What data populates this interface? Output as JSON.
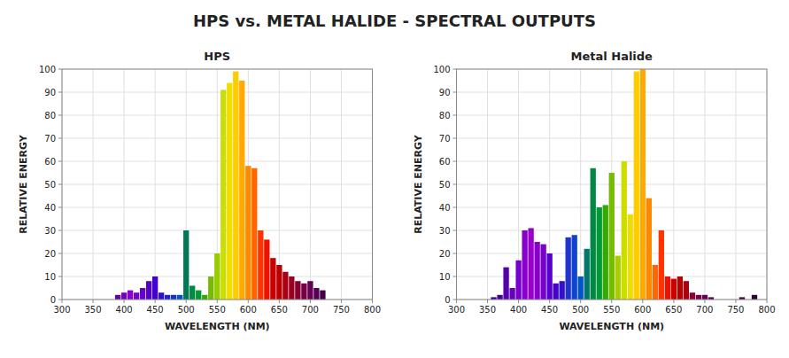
{
  "title": "HPS vs. METAL HALIDE - SPECTRAL OUTPUTS",
  "chart_data": [
    {
      "type": "bar",
      "title": "HPS",
      "xlabel": "WAVELENGTH (NM)",
      "ylabel": "RELATIVE ENERGY",
      "xlim": [
        300,
        800
      ],
      "ylim": [
        0,
        100
      ],
      "xticks": [
        300,
        350,
        400,
        450,
        500,
        550,
        600,
        650,
        700,
        750,
        800
      ],
      "yticks": [
        0,
        10,
        20,
        30,
        40,
        50,
        60,
        70,
        80,
        90,
        100
      ],
      "grid": true,
      "x": [
        390,
        400,
        410,
        420,
        430,
        440,
        450,
        460,
        470,
        480,
        490,
        500,
        510,
        520,
        530,
        540,
        550,
        560,
        570,
        580,
        590,
        600,
        610,
        620,
        630,
        640,
        650,
        660,
        670,
        680,
        690,
        700,
        710,
        720
      ],
      "values": [
        2,
        3,
        4,
        3,
        5,
        8,
        10,
        3,
        2,
        2,
        2,
        30,
        6,
        4,
        2,
        10,
        20,
        91,
        94,
        99,
        95,
        58,
        57,
        30,
        26,
        18,
        15,
        12,
        10,
        8,
        7,
        8,
        5,
        4
      ],
      "colors": [
        "#6600aa",
        "#7700bb",
        "#8800cc",
        "#7700cc",
        "#6600cc",
        "#5500cc",
        "#4400cc",
        "#3311cc",
        "#2222cc",
        "#1133cc",
        "#0055bb",
        "#007755",
        "#008844",
        "#009933",
        "#33aa00",
        "#77bb00",
        "#99cc00",
        "#ccdd00",
        "#eedd00",
        "#ffcc00",
        "#ffaa00",
        "#ff8800",
        "#ff6600",
        "#ff3300",
        "#ee1100",
        "#cc0000",
        "#bb0000",
        "#aa0011",
        "#990022",
        "#880033",
        "#770044",
        "#660055",
        "#550055",
        "#440044"
      ]
    },
    {
      "type": "bar",
      "title": "Metal Halide",
      "xlabel": "WAVELENGTH (NM)",
      "ylabel": "RELATIVE ENERGY",
      "xlim": [
        300,
        800
      ],
      "ylim": [
        0,
        100
      ],
      "xticks": [
        300,
        350,
        400,
        450,
        500,
        550,
        600,
        650,
        700,
        750,
        800
      ],
      "yticks": [
        0,
        10,
        20,
        30,
        40,
        50,
        60,
        70,
        80,
        90,
        100
      ],
      "grid": true,
      "x": [
        360,
        370,
        380,
        390,
        400,
        410,
        420,
        430,
        440,
        450,
        460,
        470,
        480,
        490,
        500,
        510,
        520,
        530,
        540,
        550,
        560,
        570,
        580,
        590,
        600,
        610,
        620,
        630,
        640,
        650,
        660,
        670,
        680,
        690,
        700,
        710,
        760,
        780
      ],
      "values": [
        1,
        2,
        14,
        5,
        17,
        30,
        31,
        25,
        24,
        20,
        7,
        8,
        27,
        28,
        10,
        22,
        57,
        40,
        41,
        55,
        19,
        60,
        37,
        99,
        100,
        44,
        15,
        30,
        10,
        9,
        10,
        8,
        3,
        2,
        2,
        1,
        1,
        2
      ],
      "colors": [
        "#330088",
        "#440099",
        "#5500aa",
        "#6600bb",
        "#7700cc",
        "#8800cc",
        "#9900cc",
        "#8800cc",
        "#7700cc",
        "#5500cc",
        "#4400cc",
        "#3311cc",
        "#2233cc",
        "#1144cc",
        "#0055cc",
        "#007766",
        "#008844",
        "#009933",
        "#33aa00",
        "#77bb00",
        "#aacc00",
        "#ccdd00",
        "#eedd00",
        "#ffcc00",
        "#ffaa00",
        "#ff8800",
        "#ff6600",
        "#ff3300",
        "#ee1100",
        "#cc0000",
        "#bb0000",
        "#aa0011",
        "#880033",
        "#770044",
        "#660055",
        "#550055",
        "#440044",
        "#330033"
      ]
    }
  ]
}
